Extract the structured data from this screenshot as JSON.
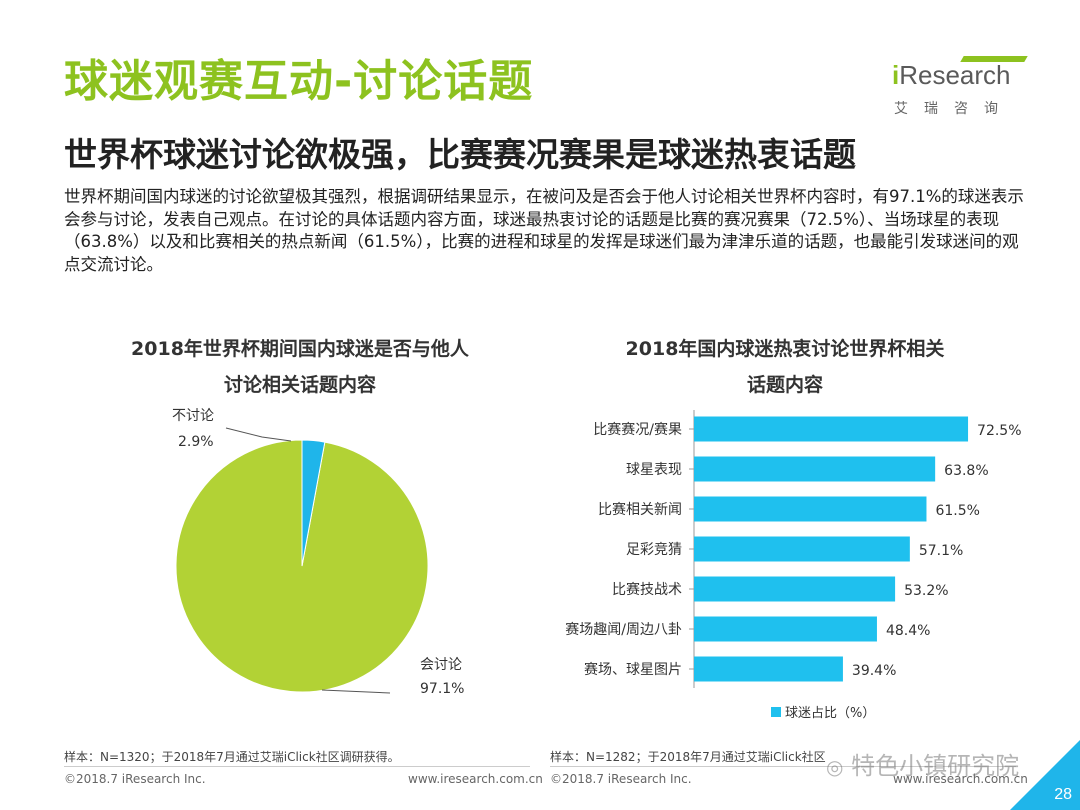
{
  "header": {
    "title": "球迷观赛互动-讨论话题",
    "subtitle": "世界杯球迷讨论欲极强，比赛赛况赛果是球迷热衷话题",
    "description": "世界杯期间国内球迷的讨论欲望极其强烈，根据调研结果显示，在被问及是否会于他人讨论相关世界杯内容时，有97.1%的球迷表示会参与讨论，发表自己观点。在讨论的具体话题内容方面，球迷最热衷讨论的话题是比赛的赛况赛果（72.5%）、当场球星的表现（63.8%）以及和比赛相关的热点新闻（61.5%），比赛的进程和球星的发挥是球迷们最为津津乐道的话题，也最能引发球迷间的观点交流讨论。"
  },
  "logo": {
    "en_i": "i",
    "en_rest": "Research",
    "cn": "艾瑞咨询"
  },
  "chart_data": [
    {
      "type": "pie",
      "title_line1": "2018年世界杯期间国内球迷是否与他人",
      "title_line2": "讨论相关话题内容",
      "slices": [
        {
          "label": "会讨论",
          "value": 97.1,
          "value_label": "97.1%",
          "color": "#b2d235"
        },
        {
          "label": "不讨论",
          "value": 2.9,
          "value_label": "2.9%",
          "color": "#1fb5ea"
        }
      ]
    },
    {
      "type": "bar",
      "orientation": "horizontal",
      "title_line1": "2018年国内球迷热衷讨论世界杯相关",
      "title_line2": "话题内容",
      "categories": [
        "比赛赛况/赛果",
        "球星表现",
        "比赛相关新闻",
        "足彩竞猜",
        "比赛技战术",
        "赛场趣闻/周边八卦",
        "赛场、球星图片"
      ],
      "series": [
        {
          "name": "球迷占比（%）",
          "values": [
            72.5,
            63.8,
            61.5,
            57.1,
            53.2,
            48.4,
            39.4
          ],
          "color": "#1fc0ee"
        }
      ],
      "value_labels": [
        "72.5%",
        "63.8%",
        "61.5%",
        "57.1%",
        "53.2%",
        "48.4%",
        "39.4%"
      ],
      "xlim": [
        0,
        100
      ],
      "legend": "bottom"
    }
  ],
  "footer": {
    "source_left": "样本：N=1320；于2018年7月通过艾瑞iClick社区调研获得。",
    "source_right": "样本：N=1282；于2018年7月通过艾瑞iClick社区",
    "copyright_left": "©2018.7 iResearch Inc.",
    "url_left": "www.iresearch.com.cn",
    "copyright_right": "©2018.7 iResearch Inc.",
    "url_right": "www.iresearch.com.cn",
    "watermark": "特色小镇研究院",
    "page_number": "28",
    "colors": {
      "accent_green": "#8dc21f",
      "corner_blue": "#1fb5ea"
    }
  }
}
